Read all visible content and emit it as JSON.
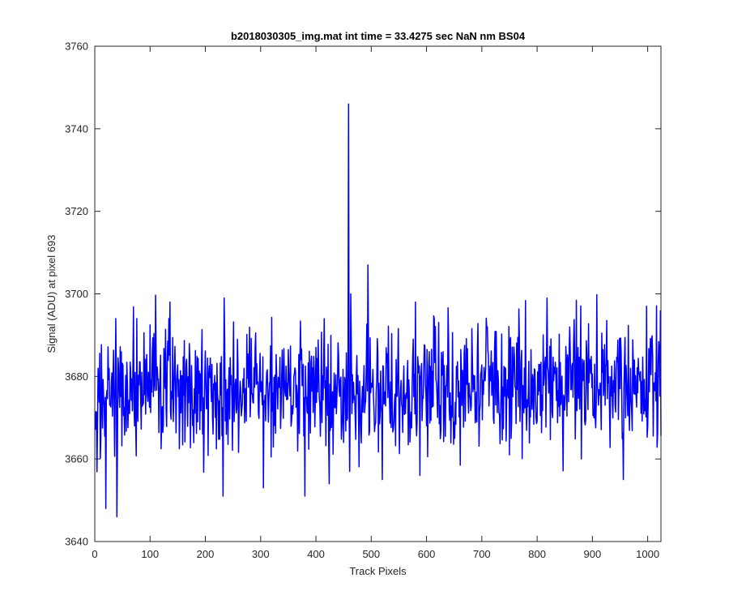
{
  "chart_data": {
    "type": "line",
    "title": "b2018030305_img.mat int time = 33.4275 sec  NaN nm BS04",
    "xlabel": "Track Pixels",
    "ylabel": "Signal (ADU) at pixel 693",
    "xlim": [
      0,
      1024
    ],
    "ylim": [
      3640,
      3760
    ],
    "xticks": [
      0,
      100,
      200,
      300,
      400,
      500,
      600,
      700,
      800,
      900,
      1000
    ],
    "yticks": [
      3640,
      3660,
      3680,
      3700,
      3720,
      3740,
      3760
    ],
    "grid": false,
    "line_color": "#0000ff",
    "series": [
      {
        "x_start": 1,
        "x_step": 1,
        "noise_seed": 20180303,
        "noise_mean": 3676,
        "noise_std": 7.5,
        "noise_range": [
          3646,
          3707
        ],
        "features": [
          {
            "x": 20,
            "y": 3648
          },
          {
            "x": 40,
            "y": 3646
          },
          {
            "x": 38,
            "y": 3694
          },
          {
            "x": 76,
            "y": 3694
          },
          {
            "x": 134,
            "y": 3694
          },
          {
            "x": 136,
            "y": 3698
          },
          {
            "x": 232,
            "y": 3651
          },
          {
            "x": 234,
            "y": 3699
          },
          {
            "x": 258,
            "y": 3689
          },
          {
            "x": 305,
            "y": 3653
          },
          {
            "x": 380,
            "y": 3651
          },
          {
            "x": 424,
            "y": 3654
          },
          {
            "x": 459,
            "y": 3746
          },
          {
            "x": 461,
            "y": 3657
          },
          {
            "x": 463,
            "y": 3700
          },
          {
            "x": 494,
            "y": 3707
          },
          {
            "x": 520,
            "y": 3655
          },
          {
            "x": 580,
            "y": 3698
          },
          {
            "x": 588,
            "y": 3656
          },
          {
            "x": 614,
            "y": 3694
          },
          {
            "x": 710,
            "y": 3692
          },
          {
            "x": 750,
            "y": 3661
          },
          {
            "x": 818,
            "y": 3699
          },
          {
            "x": 880,
            "y": 3660
          },
          {
            "x": 956,
            "y": 3655
          },
          {
            "x": 998,
            "y": 3697
          },
          {
            "x": 1018,
            "y": 3666
          }
        ]
      }
    ]
  }
}
